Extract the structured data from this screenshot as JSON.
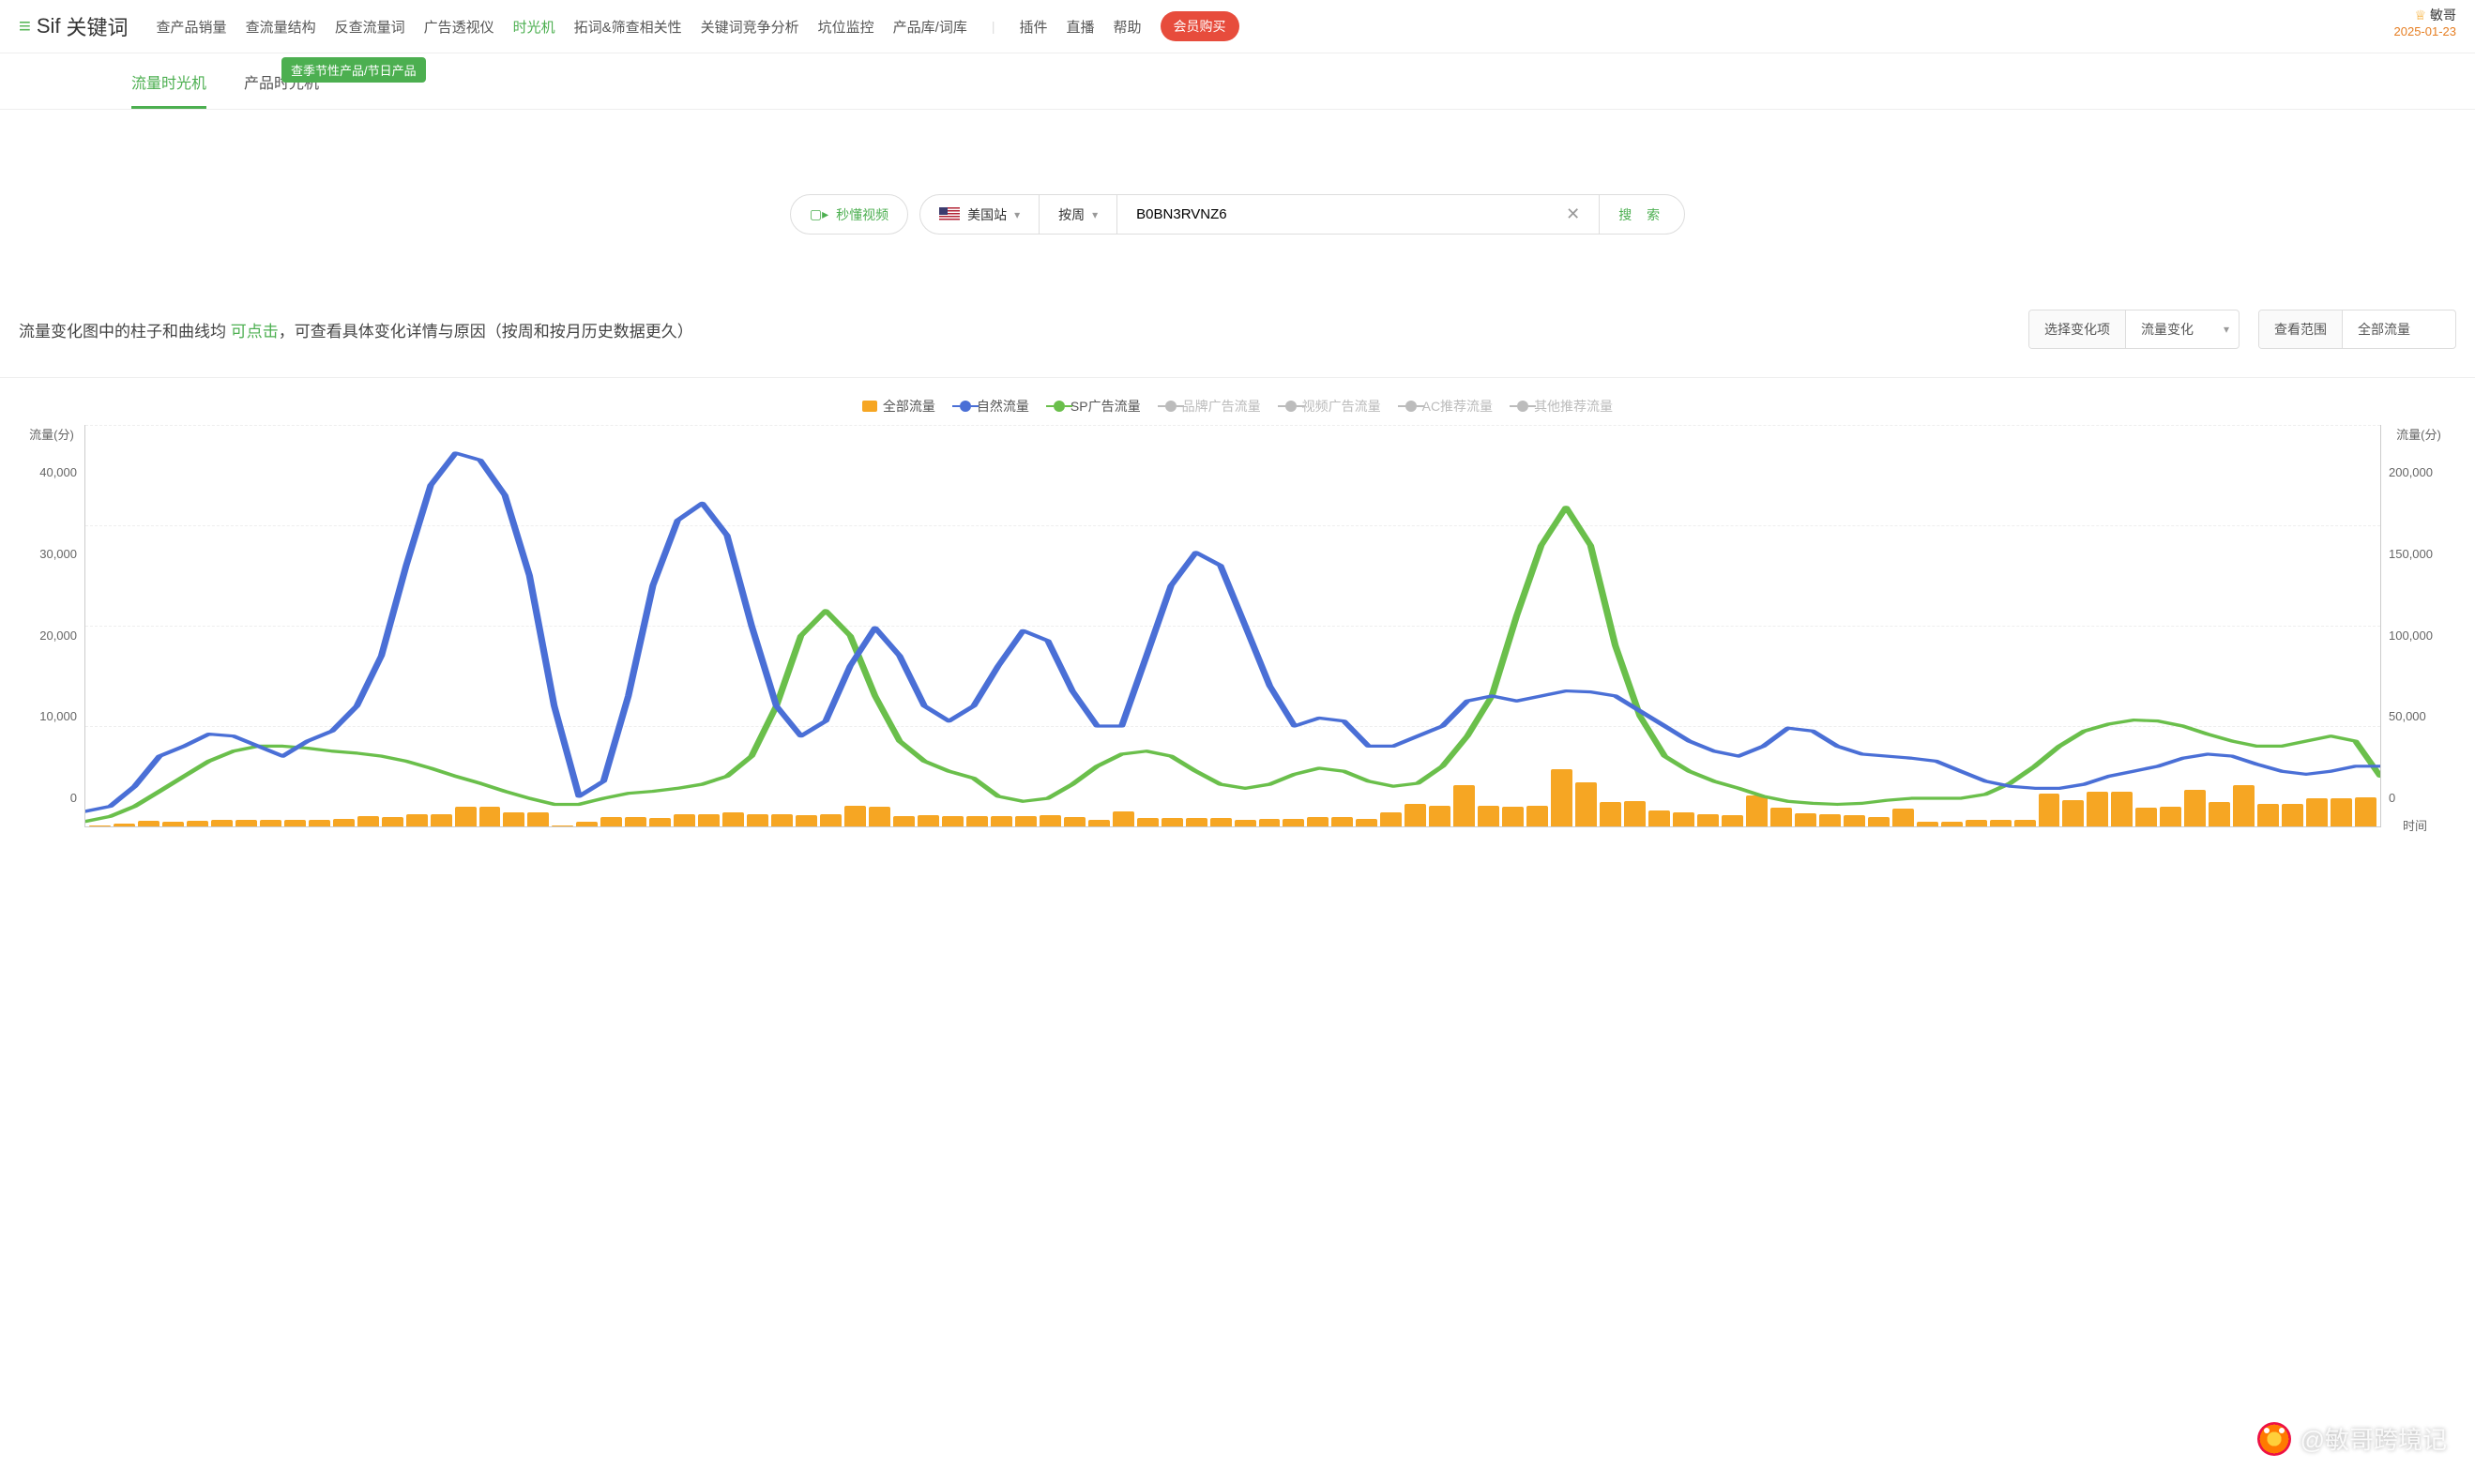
{
  "brand": {
    "menu_glyph": "≡",
    "name": "Sif",
    "section": "关键词"
  },
  "nav": {
    "items": [
      "查产品销量",
      "查流量结构",
      "反查流量词",
      "广告透视仪",
      "时光机",
      "拓词&筛查相关性",
      "关键词竞争分析",
      "坑位监控",
      "产品库/词库"
    ],
    "active_index": 4,
    "extra": [
      "插件",
      "直播",
      "帮助"
    ],
    "buy": "会员购买"
  },
  "user": {
    "name": "敏哥",
    "date": "2025-01-23"
  },
  "subtabs": {
    "items": [
      "流量时光机",
      "产品时光机"
    ],
    "active_index": 0,
    "badge": "查季节性产品/节日产品"
  },
  "search": {
    "video_btn": "秒懂视频",
    "site": "美国站",
    "period": "按周",
    "asin": "B0BN3RVNZ6",
    "btn": "搜 索"
  },
  "hint": {
    "prefix": "流量变化图中的柱子和曲线均 ",
    "click": "可点击",
    "suffix": "，可查看具体变化详情与原因（按周和按月历史数据更久）"
  },
  "selects": {
    "change_label": "选择变化项",
    "change_value": "流量变化",
    "scope_label": "查看范围",
    "scope_value": "全部流量"
  },
  "chart": {
    "type": "bar+line",
    "legend": [
      {
        "label": "全部流量",
        "kind": "bar",
        "color": "#f6a623",
        "enabled": true
      },
      {
        "label": "自然流量",
        "kind": "line",
        "color": "#4a6fd6",
        "enabled": true
      },
      {
        "label": "SP广告流量",
        "kind": "line",
        "color": "#6abf4b",
        "enabled": true
      },
      {
        "label": "品牌广告流量",
        "kind": "line",
        "color": "#bcbcbc",
        "enabled": false
      },
      {
        "label": "视频广告流量",
        "kind": "line",
        "color": "#bcbcbc",
        "enabled": false
      },
      {
        "label": "AC推荐流量",
        "kind": "line",
        "color": "#bcbcbc",
        "enabled": false
      },
      {
        "label": "其他推荐流量",
        "kind": "line",
        "color": "#bcbcbc",
        "enabled": false
      }
    ],
    "y_left": {
      "title": "流量(分)",
      "ticks": [
        "40,000",
        "30,000",
        "20,000",
        "10,000",
        "0"
      ],
      "min": 0,
      "max": 40000
    },
    "y_right": {
      "title": "流量(分)",
      "ticks": [
        "200,000",
        "150,000",
        "100,000",
        "50,000",
        "0"
      ],
      "min": 0,
      "max": 200000
    },
    "x_label_right": "时间",
    "grid_color": "#eeeeee",
    "background_color": "#ffffff",
    "bars": {
      "color": "#f6a623",
      "values": [
        500,
        1500,
        2800,
        2200,
        3000,
        3200,
        3300,
        3200,
        3500,
        3500,
        3600,
        5000,
        4800,
        6000,
        6000,
        10000,
        9800,
        7000,
        7000,
        500,
        2500,
        4500,
        4800,
        4200,
        6300,
        6000,
        7200,
        6000,
        6000,
        5800,
        6000,
        10500,
        9800,
        5200,
        5700,
        5000,
        5300,
        5000,
        5200,
        5500,
        4500,
        3500,
        7600,
        4000,
        4300,
        4000,
        4400,
        3500,
        3600,
        3800,
        4500,
        4800,
        3800,
        7200,
        11000,
        10400,
        20800,
        10400,
        10000,
        10200,
        28500,
        21800,
        12000,
        12500,
        8000,
        6800,
        6000,
        5400,
        15300,
        9500,
        6500,
        6000,
        5400,
        4500,
        8700,
        2500,
        2500,
        3400,
        3300,
        3300,
        16300,
        13100,
        17500,
        17500,
        9400,
        10000,
        18000,
        12200,
        20600,
        11200,
        11200,
        14100,
        14100,
        14300
      ]
    },
    "line_natural": {
      "color": "#4a6fd6",
      "width": 2.5,
      "values": [
        1500,
        2000,
        4000,
        7000,
        8000,
        9200,
        9000,
        8000,
        7000,
        8500,
        9500,
        12000,
        17000,
        26000,
        34000,
        37200,
        36500,
        33000,
        25000,
        12000,
        3000,
        4500,
        13000,
        24000,
        30500,
        32200,
        29000,
        20000,
        12000,
        9000,
        10500,
        16000,
        19800,
        17000,
        12000,
        10500,
        12000,
        16000,
        19500,
        18500,
        13500,
        10000,
        10000,
        17000,
        24000,
        27300,
        26000,
        20000,
        14000,
        10000,
        10800,
        10500,
        8000,
        8000,
        9000,
        10000,
        12500,
        13000,
        12500,
        13000,
        13500,
        13400,
        13000,
        11500,
        10000,
        8500,
        7500,
        7000,
        8000,
        9800,
        9500,
        8000,
        7200,
        7000,
        6800,
        6500,
        5500,
        4500,
        4000,
        3800,
        3800,
        4200,
        5000,
        5500,
        6000,
        6800,
        7200,
        7000,
        6200,
        5500,
        5200,
        5500,
        6000,
        6000
      ]
    },
    "line_sp": {
      "color": "#6abf4b",
      "width": 2.5,
      "values": [
        500,
        1000,
        2000,
        3500,
        5000,
        6500,
        7500,
        8000,
        8000,
        7800,
        7500,
        7300,
        7000,
        6500,
        5800,
        5000,
        4300,
        3500,
        2800,
        2200,
        2200,
        2800,
        3300,
        3500,
        3800,
        4200,
        5000,
        7000,
        12000,
        19000,
        21500,
        19000,
        13000,
        8500,
        6500,
        5500,
        4800,
        3000,
        2500,
        2800,
        4200,
        6000,
        7200,
        7500,
        7000,
        5500,
        4200,
        3800,
        4200,
        5200,
        5800,
        5500,
        4500,
        4000,
        4300,
        6000,
        9000,
        13000,
        21000,
        28000,
        31800,
        28000,
        18000,
        11000,
        7000,
        5500,
        4500,
        3800,
        3000,
        2500,
        2300,
        2200,
        2300,
        2600,
        2800,
        2800,
        2800,
        3200,
        4300,
        6000,
        8000,
        9500,
        10200,
        10600,
        10500,
        10000,
        9200,
        8500,
        8000,
        8000,
        8500,
        9000,
        8500,
        5000
      ]
    }
  },
  "watermark": "@敏哥跨境记"
}
